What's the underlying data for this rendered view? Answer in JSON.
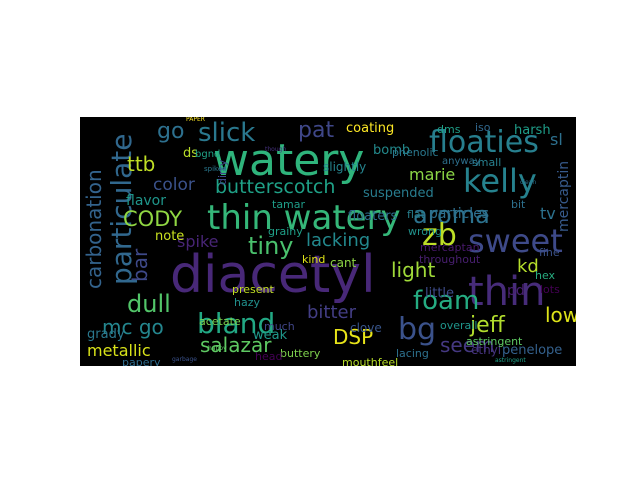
{
  "words": [
    {
      "text": "watery",
      "color": "#2fb47c"
    },
    {
      "text": "diacetyl",
      "color": "#482878"
    },
    {
      "text": "thin watery",
      "color": "#35b779"
    },
    {
      "text": "sweet",
      "color": "#3e4a89"
    },
    {
      "text": "thin",
      "color": "#472c7a"
    },
    {
      "text": "particulate",
      "color": "#31688e"
    },
    {
      "text": "floaties",
      "color": "#277f8e"
    },
    {
      "text": "kelly",
      "color": "#26828e"
    },
    {
      "text": "bland",
      "color": "#22a884"
    },
    {
      "text": "slick",
      "color": "#2a788e"
    },
    {
      "text": "carbonation",
      "color": "#33638d"
    },
    {
      "text": "aroma",
      "color": "#2c728e"
    },
    {
      "text": "CODY",
      "color": "#90d743"
    },
    {
      "text": "zb",
      "color": "#bddf26"
    },
    {
      "text": "butterscotch",
      "color": "#1fa187"
    },
    {
      "text": "foam",
      "color": "#25ac82"
    },
    {
      "text": "bg",
      "color": "#3b528b"
    },
    {
      "text": "salazar",
      "color": "#5ec962"
    },
    {
      "text": "dull",
      "color": "#52c569"
    },
    {
      "text": "tiny",
      "color": "#4ac16d"
    },
    {
      "text": "go",
      "color": "#2d708e"
    },
    {
      "text": "pat",
      "color": "#3f4788"
    },
    {
      "text": "jeff",
      "color": "#b2dd2d"
    },
    {
      "text": "mc go",
      "color": "#24868e"
    },
    {
      "text": "ttb",
      "color": "#c0df25"
    },
    {
      "text": "lacking",
      "color": "#23898e"
    },
    {
      "text": "DSP",
      "color": "#e8e419"
    },
    {
      "text": "bar",
      "color": "#3e4989"
    },
    {
      "text": "light",
      "color": "#a0da39"
    },
    {
      "text": "spike",
      "color": "#482576"
    },
    {
      "text": "color",
      "color": "#3b528b"
    },
    {
      "text": "bitter",
      "color": "#433e85"
    },
    {
      "text": "seem",
      "color": "#453882"
    },
    {
      "text": "marie",
      "color": "#8bd646"
    },
    {
      "text": "low",
      "color": "#dde318"
    },
    {
      "text": "metallic",
      "color": "#d8e219"
    },
    {
      "text": "kd",
      "color": "#b5de2b"
    },
    {
      "text": "tv",
      "color": "#2c728e"
    },
    {
      "text": "penelope",
      "color": "#34618d"
    },
    {
      "text": "bomb",
      "color": "#238a8d"
    },
    {
      "text": "coating",
      "color": "#fde725"
    },
    {
      "text": "harsh",
      "color": "#1f9e89"
    },
    {
      "text": "flavor",
      "color": "#1f968b"
    },
    {
      "text": "grady",
      "color": "#2a788e"
    },
    {
      "text": "acetate",
      "color": "#7ad151"
    },
    {
      "text": "note",
      "color": "#cae11f"
    },
    {
      "text": "suspended",
      "color": "#287c8e"
    },
    {
      "text": "particles",
      "color": "#2e6f8e"
    },
    {
      "text": "mercaptin",
      "color": "#375a8c"
    },
    {
      "text": "ds",
      "color": "#bade28"
    },
    {
      "text": "dms",
      "color": "#1fa088"
    },
    {
      "text": "iso",
      "color": "#31688e"
    },
    {
      "text": "slightly",
      "color": "#25848e"
    },
    {
      "text": "sl",
      "color": "#2d708e"
    },
    {
      "text": "pd",
      "color": "#482071"
    },
    {
      "text": "little",
      "color": "#3e4c8a"
    },
    {
      "text": "floaters",
      "color": "#2e6e8e"
    },
    {
      "text": "phenolic",
      "color": "#2a788e"
    },
    {
      "text": "tamar",
      "color": "#1e9d89"
    },
    {
      "text": "lots",
      "color": "#440154"
    },
    {
      "text": "throughout",
      "color": "#481f70"
    },
    {
      "text": "cant",
      "color": "#8ed645"
    },
    {
      "text": "kind",
      "color": "#dfe318"
    },
    {
      "text": "much",
      "color": "#404688"
    },
    {
      "text": "present",
      "color": "#c2df23"
    },
    {
      "text": "weak",
      "color": "#1f988b"
    },
    {
      "text": "buttery",
      "color": "#7fd34e"
    },
    {
      "text": "clove",
      "color": "#39568c"
    },
    {
      "text": "ethyl",
      "color": "#46337e"
    },
    {
      "text": "mouthfeel",
      "color": "#b8de29"
    },
    {
      "text": "lacing",
      "color": "#2d718e"
    },
    {
      "text": "head",
      "color": "#440154"
    },
    {
      "text": "astringent",
      "color": "#5ec962"
    },
    {
      "text": "isoamyl",
      "color": "#48186a"
    },
    {
      "text": "overall",
      "color": "#1f958b"
    },
    {
      "text": "hex",
      "color": "#27ad81"
    },
    {
      "text": "mercaptan",
      "color": "#48196b"
    },
    {
      "text": "small",
      "color": "#277f8e"
    },
    {
      "text": "wrong",
      "color": "#20928c"
    },
    {
      "text": "flat",
      "color": "#277f8e"
    },
    {
      "text": "bit",
      "color": "#2d708e"
    },
    {
      "text": "fine",
      "color": "#3b528b"
    },
    {
      "text": "grainy",
      "color": "#1fa088"
    },
    {
      "text": "way",
      "color": "#2c728e"
    },
    {
      "text": "papery",
      "color": "#2f6c8e"
    },
    {
      "text": "hazy",
      "color": "#21908d"
    },
    {
      "text": "dirty",
      "color": "#3f4889"
    },
    {
      "text": "anyway",
      "color": "#2d708e"
    },
    {
      "text": "bgnd",
      "color": "#20a386"
    },
    {
      "text": "PAPER",
      "color": "#fde725"
    },
    {
      "text": "spiked",
      "color": "#2a788e"
    },
    {
      "text": "though",
      "color": "#46327e"
    },
    {
      "text": "garbage",
      "color": "#3b528b"
    },
    {
      "text": "happy",
      "color": "#5ec962"
    },
    {
      "text": "astringent",
      "color": "#1fa088"
    },
    {
      "text": "clean",
      "color": "#2c728e"
    }
  ]
}
